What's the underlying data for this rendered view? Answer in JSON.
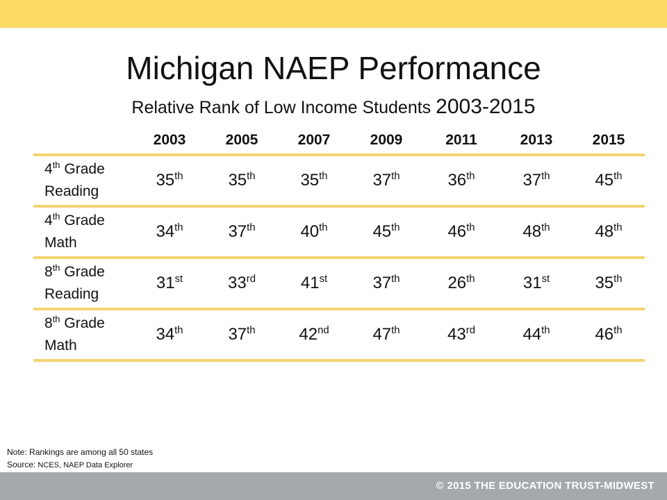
{
  "slide": {
    "title": "Michigan NAEP Performance",
    "subtitle_main": "Relative Rank of Low Income Students",
    "subtitle_years": "2003-2015",
    "colors": {
      "top_bar": "#fdd966",
      "rule": "#f3d46f",
      "bottom_bar": "#a4a9ad"
    }
  },
  "table": {
    "years": [
      "2003",
      "2005",
      "2007",
      "2009",
      "2011",
      "2013",
      "2015"
    ],
    "rows": [
      {
        "label_num": "4",
        "label_sup": "th",
        "label_rest": " Grade",
        "label_subject": "Reading",
        "cells": [
          {
            "n": "35",
            "s": "th"
          },
          {
            "n": "35",
            "s": "th"
          },
          {
            "n": "35",
            "s": "th"
          },
          {
            "n": "37",
            "s": "th"
          },
          {
            "n": "36",
            "s": "th"
          },
          {
            "n": "37",
            "s": "th"
          },
          {
            "n": "45",
            "s": "th"
          }
        ]
      },
      {
        "label_num": "4",
        "label_sup": "th",
        "label_rest": " Grade",
        "label_subject": "Math",
        "cells": [
          {
            "n": "34",
            "s": "th"
          },
          {
            "n": "37",
            "s": "th"
          },
          {
            "n": "40",
            "s": "th"
          },
          {
            "n": "45",
            "s": "th"
          },
          {
            "n": "46",
            "s": "th"
          },
          {
            "n": "48",
            "s": "th"
          },
          {
            "n": "48",
            "s": "th"
          }
        ]
      },
      {
        "label_num": "8",
        "label_sup": "th",
        "label_rest": " Grade",
        "label_subject": "Reading",
        "cells": [
          {
            "n": "31",
            "s": "st"
          },
          {
            "n": "33",
            "s": "rd"
          },
          {
            "n": "41",
            "s": "st"
          },
          {
            "n": "37",
            "s": "th"
          },
          {
            "n": "26",
            "s": "th"
          },
          {
            "n": "31",
            "s": "st"
          },
          {
            "n": "35",
            "s": "th"
          }
        ]
      },
      {
        "label_num": "8",
        "label_sup": "th",
        "label_rest": " Grade",
        "label_subject": "Math",
        "cells": [
          {
            "n": "34",
            "s": "th"
          },
          {
            "n": "37",
            "s": "th"
          },
          {
            "n": "42",
            "s": "nd"
          },
          {
            "n": "47",
            "s": "th"
          },
          {
            "n": "43",
            "s": "rd"
          },
          {
            "n": "44",
            "s": "th"
          },
          {
            "n": "46",
            "s": "th"
          }
        ]
      }
    ]
  },
  "footer": {
    "note_label": "Note:",
    "note_text": " Rankings are among all 50 states",
    "source_label": "Source:",
    "source_text": " NCES, NAEP Data Explorer",
    "copyright": "© 2015 THE EDUCATION TRUST-MIDWEST"
  }
}
